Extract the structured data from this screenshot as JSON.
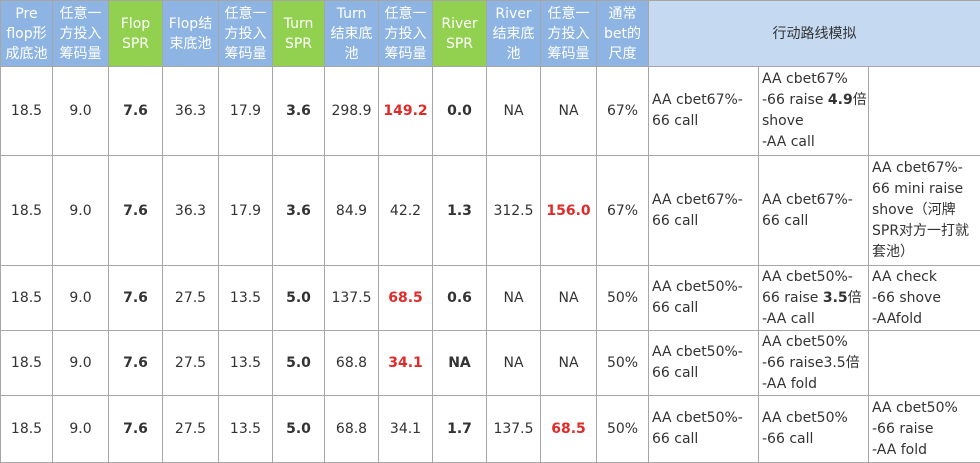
{
  "table": {
    "header": [
      [
        "Pre",
        "flop形",
        "成底池"
      ],
      [
        "任意一",
        "方投入",
        "筹码量"
      ],
      [
        "Flop",
        "SPR"
      ],
      [
        "Flop结",
        "束底池"
      ],
      [
        "任意一",
        "方投入",
        "筹码量"
      ],
      [
        "Turn",
        "SPR"
      ],
      [
        "Turn",
        "结束底",
        "池"
      ],
      [
        "任意一",
        "方投入",
        "筹码量"
      ],
      [
        "River",
        "SPR"
      ],
      [
        "River",
        "结束底",
        "池"
      ],
      [
        "任意一",
        "方投入",
        "筹码量"
      ],
      [
        "通常",
        "bet的",
        "尺度"
      ]
    ],
    "route_header": "行动路线模拟",
    "green_columns": [
      2,
      5,
      8
    ],
    "bold_columns": [
      2,
      5,
      8
    ],
    "highlight": [
      [
        0,
        7
      ],
      [
        1,
        10
      ],
      [
        2,
        7
      ],
      [
        3,
        7
      ],
      [
        4,
        10
      ]
    ],
    "highlight_color": "#e02b2b",
    "rows": [
      {
        "cells": [
          "18.5",
          "9.0",
          "7.6",
          "36.3",
          "17.9",
          "3.6",
          "298.9",
          "149.2",
          "0.0",
          "NA",
          "NA",
          "67%"
        ],
        "routes": [
          [
            "AA cbet67%-",
            "66 call"
          ],
          [
            "AA cbet67%",
            [
              "-66 raise ",
              "4.9",
              "倍"
            ],
            "shove",
            "-AA call"
          ],
          []
        ]
      },
      {
        "cells": [
          "18.5",
          "9.0",
          "7.6",
          "36.3",
          "17.9",
          "3.6",
          "84.9",
          "42.2",
          "1.3",
          "312.5",
          "156.0",
          "67%"
        ],
        "routes": [
          [
            "AA cbet67%-",
            "66 call"
          ],
          [
            "AA cbet67%-",
            "66 call"
          ],
          [
            "AA cbet67%-",
            "66 mini raise",
            "shove（河牌",
            "SPR对方一打就",
            "套池）"
          ]
        ]
      },
      {
        "cells": [
          "18.5",
          "9.0",
          "7.6",
          "27.5",
          "13.5",
          "5.0",
          "137.5",
          "68.5",
          "0.6",
          "NA",
          "NA",
          "50%"
        ],
        "routes": [
          [
            "AA cbet50%-",
            "66 call"
          ],
          [
            "AA cbet50%-",
            [
              "66 raise ",
              "3.5",
              "倍"
            ],
            "-AA call"
          ],
          [
            "AA check",
            "-66 shove",
            "-AAfold"
          ]
        ]
      },
      {
        "cells": [
          "18.5",
          "9.0",
          "7.6",
          "27.5",
          "13.5",
          "5.0",
          "68.8",
          "34.1",
          "NA",
          "NA",
          "NA",
          "50%"
        ],
        "routes": [
          [
            "AA cbet50%-",
            "66 call"
          ],
          [
            "AA cbet50%",
            "-66 raise3.5倍",
            "-AA fold"
          ],
          []
        ]
      },
      {
        "cells": [
          "18.5",
          "9.0",
          "7.6",
          "27.5",
          "13.5",
          "5.0",
          "68.8",
          "34.1",
          "1.7",
          "137.5",
          "68.5",
          "50%"
        ],
        "routes": [
          [
            "AA cbet50%-",
            "66 call"
          ],
          [
            "AA cbet50%",
            "-66 call"
          ],
          [
            "AA cbet50%",
            "-66 raise",
            "-AA fold"
          ]
        ]
      }
    ]
  }
}
